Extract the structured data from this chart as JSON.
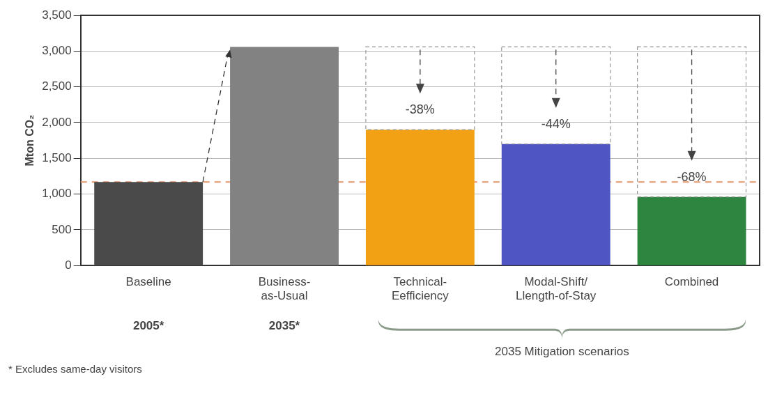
{
  "chart_data": {
    "type": "bar",
    "ylabel": "Mton CO₂",
    "categories": [
      "Baseline",
      "Business-as-Usual",
      "Technical-Eefficiency",
      "Modal-Shift/Llength-of-Stay",
      "Combined"
    ],
    "values": [
      1170,
      3060,
      1900,
      1700,
      960
    ],
    "colors": [
      "#4a4a4a",
      "#828282",
      "#f2a014",
      "#4f55c2",
      "#2e8540"
    ],
    "ylim": [
      0,
      3500
    ],
    "yticks": [
      0,
      500,
      {
        "value": 1000,
        "label": "1,000"
      },
      {
        "value": 1500,
        "label": "1,500"
      },
      {
        "value": 2000,
        "label": "2,000"
      },
      {
        "value": 2500,
        "label": "2,500"
      },
      {
        "value": 3000,
        "label": "3,000"
      },
      {
        "value": 3500,
        "label": "3,500"
      }
    ],
    "grid": "y",
    "ref_lines": [
      {
        "axis": "y",
        "value": 1170,
        "color": "#e8946a",
        "line_style": "dashed"
      }
    ],
    "annotations": [
      "-38%",
      "-44%",
      "-68%",
      "2005*",
      "2035*",
      "2035 Mitigation scenarios",
      "* Excludes same-day visitors"
    ]
  }
}
